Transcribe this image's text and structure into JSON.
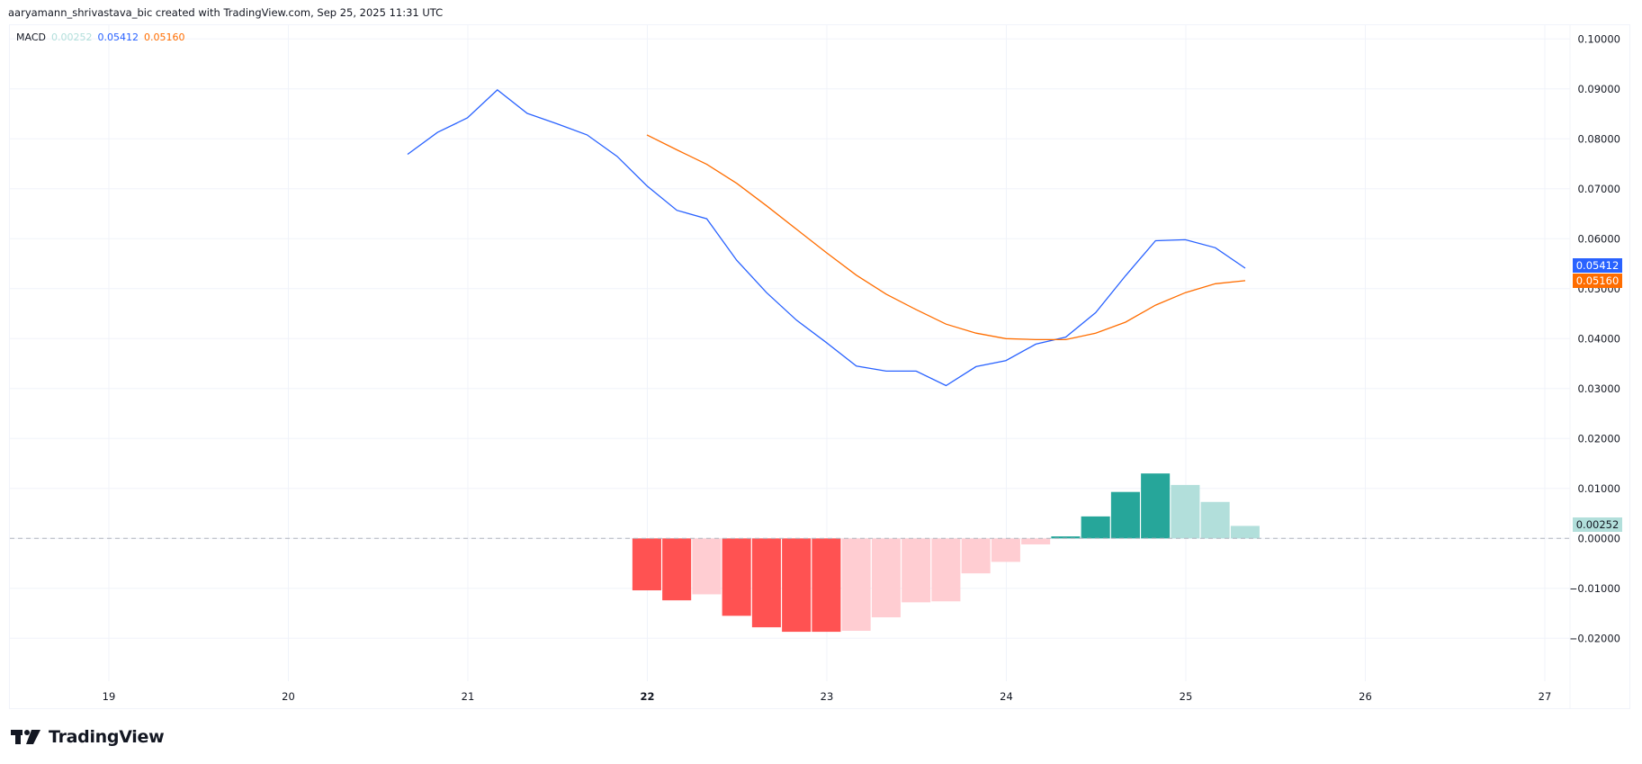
{
  "header": {
    "attribution": "aaryamann_shrivastava_bic created with TradingView.com, Sep 25, 2025 11:31 UTC"
  },
  "legend": {
    "name": "MACD",
    "histogram_value": "0.00252",
    "macd_value": "0.05412",
    "signal_value": "0.05160"
  },
  "price_tags": {
    "macd": "0.05412",
    "signal": "0.05160",
    "histogram": "0.00252"
  },
  "colors": {
    "macd_line": "#2962ff",
    "signal_line": "#ff6d00",
    "hist_pos_strong": "#26a69a",
    "hist_pos_weak": "#b2dfdb",
    "hist_neg_strong": "#ff5252",
    "hist_neg_weak": "#ffcdd2",
    "grid": "#f0f3fa",
    "zero_line": "#b2b5be"
  },
  "footer": {
    "logo_text": "TradingView"
  },
  "chart_data": {
    "type": "line",
    "title": "MACD",
    "xlabel": "",
    "ylabel": "",
    "x_ticks": [
      "19",
      "20",
      "21",
      "22",
      "23",
      "24",
      "25",
      "26",
      "27"
    ],
    "y_ticks": [
      "0.10000",
      "0.09000",
      "0.08000",
      "0.07000",
      "0.06000",
      "0.05000",
      "0.04000",
      "0.03000",
      "0.02000",
      "0.01000",
      "0.00000",
      "-0.01000",
      "-0.02000"
    ],
    "ylim": [
      -0.027,
      0.1035
    ],
    "grid": true,
    "bar_interval": "4h",
    "series": [
      {
        "name": "MACD",
        "type": "line",
        "start_index": -8,
        "values": [
          0.0769,
          0.0813,
          0.0842,
          0.0898,
          0.0851,
          0.083,
          0.0808,
          0.0765,
          0.0706,
          0.0657,
          0.064,
          0.0557,
          0.0492,
          0.0437,
          0.0392,
          0.0345,
          0.0335,
          0.0335,
          0.0306,
          0.0344,
          0.0356,
          0.0389,
          0.0403,
          0.0452,
          0.0526,
          0.0596,
          0.0598,
          0.0582,
          0.0541
        ]
      },
      {
        "name": "Signal",
        "type": "line",
        "start_index": 0,
        "values": [
          0.0808,
          0.0778,
          0.0749,
          0.0711,
          0.0666,
          0.0619,
          0.0572,
          0.0527,
          0.0489,
          0.0458,
          0.0429,
          0.0411,
          0.04,
          0.0398,
          0.0398,
          0.0411,
          0.0433,
          0.0467,
          0.0492,
          0.051,
          0.0516
        ]
      },
      {
        "name": "Histogram",
        "type": "bar",
        "start_index": 0,
        "values": [
          -0.0104,
          -0.0124,
          -0.0112,
          -0.0155,
          -0.0178,
          -0.0187,
          -0.0187,
          -0.0185,
          -0.0158,
          -0.0128,
          -0.0126,
          -0.007,
          -0.0047,
          -0.0012,
          0.0004,
          0.0044,
          0.0093,
          0.013,
          0.0107,
          0.0073,
          0.0025
        ]
      }
    ]
  }
}
